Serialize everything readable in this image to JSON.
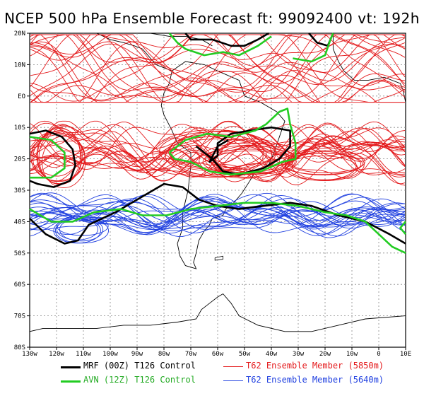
{
  "title": "NCEP 500 hPa Ensemble Forecast   ft: 99092400 vt: 192h",
  "lat_labels": [
    "20N",
    "10N",
    "EO",
    "10S",
    "20S",
    "30S",
    "40S",
    "50S",
    "60S",
    "70S",
    "80S"
  ],
  "lon_labels": [
    "130w",
    "120w",
    "110w",
    "100w",
    "90w",
    "80w",
    "70w",
    "60w",
    "50w",
    "40w",
    "30w",
    "20w",
    "10w",
    "0",
    "10E"
  ],
  "legend": [
    {
      "label": "MRF (00Z) T126 Control",
      "color": "#000000",
      "width": 3
    },
    {
      "label": "AVN (12Z) T126 Control",
      "color": "#22cc22",
      "width": 3
    },
    {
      "label": "T62 Ensemble Member (5850m)",
      "color": "#e41a1c",
      "width": 1
    },
    {
      "label": "T62 Ensemble Member (5640m)",
      "color": "#2040e0",
      "width": 1
    }
  ],
  "colors": {
    "red": "#e41a1c",
    "blue": "#2040e0",
    "green": "#22cc22",
    "black": "#000000",
    "coast": "#000000",
    "grid": "#888888"
  }
}
